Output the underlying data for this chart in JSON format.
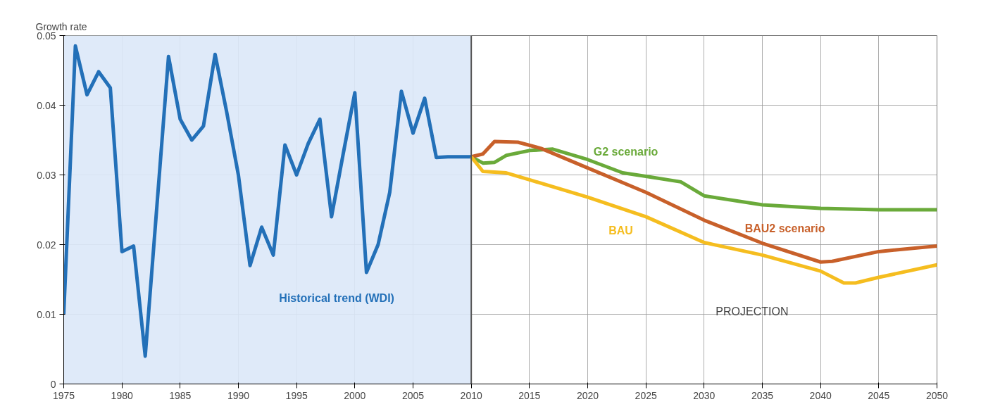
{
  "chart_data": {
    "type": "line",
    "ylabel": "Growth rate",
    "xlim": [
      1975,
      2050
    ],
    "ylim": [
      0,
      0.05
    ],
    "xticks": [
      1975,
      1980,
      1985,
      1990,
      1995,
      2000,
      2005,
      2010,
      2015,
      2020,
      2025,
      2030,
      2035,
      2040,
      2045,
      2050
    ],
    "yticks": [
      0,
      0.01,
      0.02,
      0.03,
      0.04,
      0.05
    ],
    "grid": true,
    "marker": "none",
    "line_style": "solid",
    "series": [
      {
        "name": "Historical trend (WDI)",
        "color": "#2370b8",
        "x": [
          1975,
          1976,
          1977,
          1978,
          1979,
          1980,
          1981,
          1982,
          1983,
          1984,
          1985,
          1986,
          1987,
          1988,
          1989,
          1990,
          1991,
          1992,
          1993,
          1994,
          1995,
          1996,
          1997,
          1998,
          1999,
          2000,
          2001,
          2002,
          2003,
          2004,
          2005,
          2006,
          2007,
          2008,
          2009,
          2010
        ],
        "values": [
          0.01,
          0.0485,
          0.0415,
          0.0448,
          0.0425,
          0.019,
          0.0198,
          0.004,
          0.0255,
          0.047,
          0.038,
          0.035,
          0.037,
          0.0473,
          0.039,
          0.03,
          0.017,
          0.0225,
          0.0185,
          0.0343,
          0.03,
          0.0345,
          0.038,
          0.024,
          0.033,
          0.0418,
          0.016,
          0.02,
          0.0275,
          0.042,
          0.036,
          0.041,
          0.0325,
          0.0326,
          0.0326,
          0.0326
        ]
      },
      {
        "name": "G2 scenario",
        "color": "#6aaa3a",
        "x": [
          2010,
          2011,
          2012,
          2013,
          2015,
          2017,
          2020,
          2023,
          2025,
          2028,
          2030,
          2035,
          2040,
          2045,
          2050
        ],
        "values": [
          0.0326,
          0.0317,
          0.0318,
          0.0328,
          0.0335,
          0.0337,
          0.0322,
          0.0303,
          0.0298,
          0.029,
          0.027,
          0.0257,
          0.0252,
          0.025,
          0.025
        ]
      },
      {
        "name": "BAU2 scenario",
        "color": "#c8602a",
        "x": [
          2010,
          2011,
          2012,
          2014,
          2016,
          2020,
          2025,
          2030,
          2035,
          2040,
          2041,
          2045,
          2050
        ],
        "values": [
          0.0326,
          0.033,
          0.0348,
          0.0347,
          0.0338,
          0.031,
          0.0275,
          0.0235,
          0.0202,
          0.0175,
          0.0176,
          0.019,
          0.0198
        ]
      },
      {
        "name": "BAU",
        "color": "#f5bd1f",
        "x": [
          2010,
          2011,
          2013,
          2015,
          2020,
          2025,
          2030,
          2035,
          2040,
          2042,
          2043,
          2045,
          2050
        ],
        "values": [
          0.0326,
          0.0305,
          0.0303,
          0.0293,
          0.0268,
          0.024,
          0.0203,
          0.0185,
          0.0162,
          0.0145,
          0.0145,
          0.0153,
          0.0171
        ]
      }
    ],
    "ref_lines": [
      {
        "axis": "x",
        "value": 2010,
        "color": "#555555"
      }
    ],
    "bands": [
      {
        "axis": "x",
        "from": 1975,
        "to": 2010,
        "color": "#dce8f8"
      }
    ],
    "annotations": [
      "PROJECTION"
    ]
  }
}
